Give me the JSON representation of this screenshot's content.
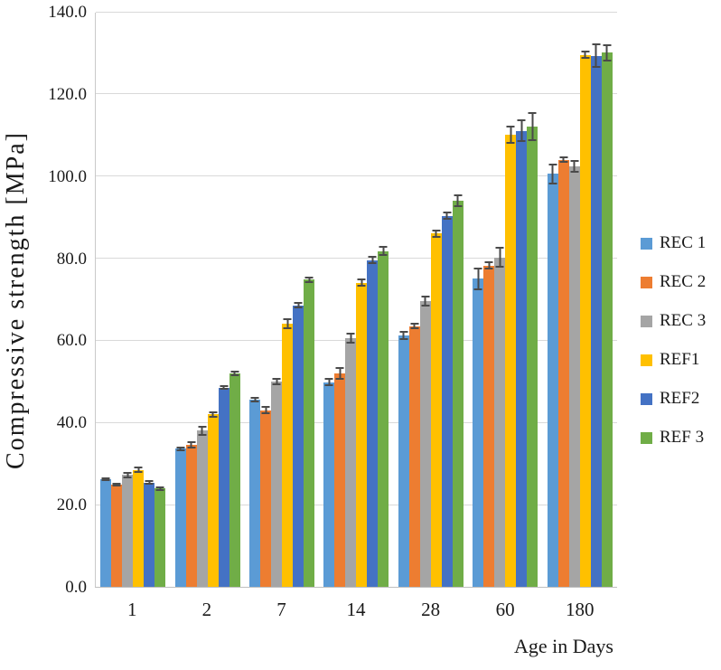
{
  "chart_data": {
    "type": "bar",
    "title": "",
    "xlabel": "Age in Days",
    "ylabel": "Compressive strength [MPa]",
    "categories": [
      "1",
      "2",
      "7",
      "14",
      "28",
      "60",
      "180"
    ],
    "ylim": [
      0,
      140
    ],
    "ytick_step": 20,
    "yticks": [
      "0.0",
      "20.0",
      "40.0",
      "60.0",
      "80.0",
      "100.0",
      "120.0",
      "140.0"
    ],
    "grid": "horizontal",
    "legend_position": "right",
    "error_bars": true,
    "error_bar_color": "#4a4a4a",
    "gridline_color": "#d9d9d9",
    "series": [
      {
        "name": "REC 1",
        "color": "#5B9BD5",
        "values": [
          26.2,
          33.6,
          45.5,
          49.8,
          61.2,
          75.0,
          100.5
        ],
        "errors": [
          0.5,
          0.6,
          0.7,
          1.0,
          1.0,
          2.7,
          2.5
        ]
      },
      {
        "name": "REC 2",
        "color": "#ED7D31",
        "values": [
          24.8,
          34.6,
          43.0,
          52.0,
          63.5,
          78.2,
          104.0
        ],
        "errors": [
          0.4,
          0.9,
          1.0,
          1.5,
          0.8,
          1.0,
          0.7
        ]
      },
      {
        "name": "REC 3",
        "color": "#A5A5A5",
        "values": [
          27.2,
          38.0,
          50.0,
          60.5,
          69.5,
          80.2,
          102.3
        ],
        "errors": [
          0.8,
          1.2,
          0.8,
          1.3,
          1.3,
          2.6,
          1.5
        ]
      },
      {
        "name": "REF1",
        "color": "#FFC000",
        "values": [
          28.5,
          42.0,
          64.0,
          74.0,
          86.0,
          110.0,
          129.5
        ],
        "errors": [
          0.8,
          0.8,
          1.3,
          1.0,
          1.0,
          2.2,
          1.0
        ]
      },
      {
        "name": "REF2",
        "color": "#4472C4",
        "values": [
          25.4,
          48.5,
          68.5,
          79.5,
          90.3,
          111.0,
          129.3
        ],
        "errors": [
          0.5,
          0.5,
          0.8,
          1.0,
          1.0,
          2.8,
          3.0
        ]
      },
      {
        "name": "REF 3",
        "color": "#70AD47",
        "values": [
          23.9,
          52.0,
          74.8,
          81.7,
          94.0,
          112.0,
          130.0
        ],
        "errors": [
          0.5,
          0.6,
          0.8,
          1.2,
          1.5,
          3.5,
          2.0
        ]
      }
    ]
  }
}
